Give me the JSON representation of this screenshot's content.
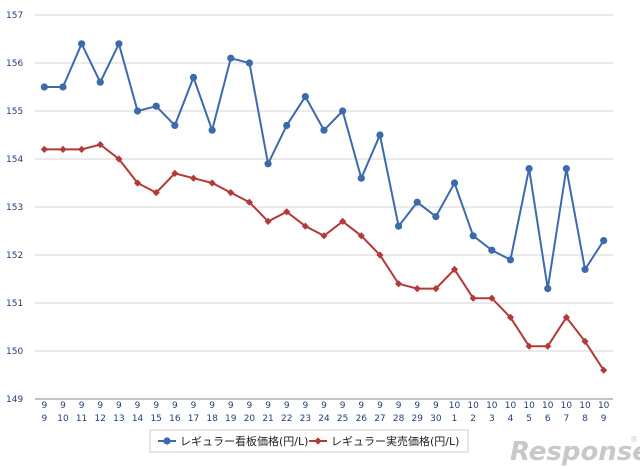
{
  "chart_data": {
    "type": "line",
    "ylim": [
      149,
      157
    ],
    "yticks": [
      149,
      150,
      151,
      152,
      153,
      154,
      155,
      156,
      157
    ],
    "grid": "horizontal",
    "legend_position": "bottom",
    "categories": [
      {
        "m": "9",
        "d": "9"
      },
      {
        "m": "9",
        "d": "10"
      },
      {
        "m": "9",
        "d": "11"
      },
      {
        "m": "9",
        "d": "12"
      },
      {
        "m": "9",
        "d": "13"
      },
      {
        "m": "9",
        "d": "14"
      },
      {
        "m": "9",
        "d": "15"
      },
      {
        "m": "9",
        "d": "16"
      },
      {
        "m": "9",
        "d": "17"
      },
      {
        "m": "9",
        "d": "18"
      },
      {
        "m": "9",
        "d": "19"
      },
      {
        "m": "9",
        "d": "20"
      },
      {
        "m": "9",
        "d": "21"
      },
      {
        "m": "9",
        "d": "22"
      },
      {
        "m": "9",
        "d": "23"
      },
      {
        "m": "9",
        "d": "24"
      },
      {
        "m": "9",
        "d": "25"
      },
      {
        "m": "9",
        "d": "26"
      },
      {
        "m": "9",
        "d": "27"
      },
      {
        "m": "9",
        "d": "28"
      },
      {
        "m": "9",
        "d": "29"
      },
      {
        "m": "9",
        "d": "30"
      },
      {
        "m": "10",
        "d": "1"
      },
      {
        "m": "10",
        "d": "2"
      },
      {
        "m": "10",
        "d": "3"
      },
      {
        "m": "10",
        "d": "4"
      },
      {
        "m": "10",
        "d": "5"
      },
      {
        "m": "10",
        "d": "6"
      },
      {
        "m": "10",
        "d": "7"
      },
      {
        "m": "10",
        "d": "8"
      },
      {
        "m": "10",
        "d": "9"
      }
    ],
    "series": [
      {
        "name": "レギュラー看板価格(円/L)",
        "color": "#3d6aad",
        "marker": "circle",
        "values": [
          155.5,
          155.5,
          156.4,
          155.6,
          156.4,
          155.0,
          155.1,
          154.7,
          155.7,
          154.6,
          156.1,
          156.0,
          153.9,
          154.7,
          155.3,
          154.6,
          155.0,
          153.6,
          154.5,
          152.6,
          153.1,
          152.8,
          153.5,
          152.4,
          152.1,
          151.9,
          153.8,
          151.3,
          153.8,
          151.7,
          152.3
        ]
      },
      {
        "name": "レギュラー実売価格(円/L)",
        "color": "#b33a3a",
        "marker": "diamond",
        "values": [
          154.2,
          154.2,
          154.2,
          154.3,
          154.0,
          153.5,
          153.3,
          153.7,
          153.6,
          153.5,
          153.3,
          153.1,
          152.7,
          152.9,
          152.6,
          152.4,
          152.7,
          152.4,
          152.0,
          151.4,
          151.3,
          151.3,
          151.7,
          151.1,
          151.1,
          150.7,
          150.1,
          150.1,
          150.7,
          150.2,
          149.6
        ]
      }
    ]
  },
  "watermark": {
    "text": "Response",
    "mark": "®",
    "color": "#c8c8c8"
  }
}
